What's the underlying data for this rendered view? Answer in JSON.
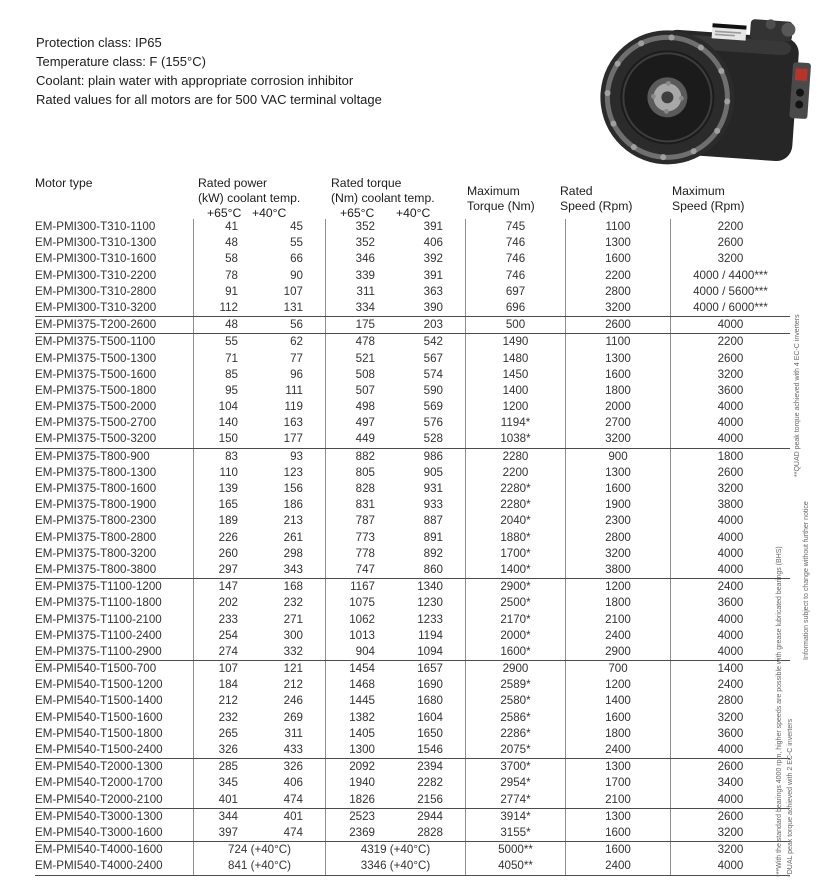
{
  "info": {
    "lines": [
      "Protection class: IP65",
      "Temperature class: F (155°C)",
      "Coolant: plain water with appropriate corrosion inhibitor",
      "Rated values for all motors are for 500 VAC terminal voltage"
    ]
  },
  "motor_image": {
    "icon": "electric-motor-photo"
  },
  "table": {
    "headers": {
      "motor_type": "Motor type",
      "power_title": "Rated power",
      "power_sub": "(kW) coolant temp.",
      "torque_title": "Rated torque",
      "torque_sub": "(Nm) coolant temp.",
      "temp65": "+65°C",
      "temp40": "+40°C",
      "max_torque_line1": "Maximum",
      "max_torque_line2": "Torque (Nm)",
      "rated_speed_line1": "Rated",
      "rated_speed_line2": "Speed (Rpm)",
      "max_speed_line1": "Maximum",
      "max_speed_line2": "Speed (Rpm)"
    },
    "columns": [
      "Motor type",
      "Rated power (kW) +65°C",
      "Rated power (kW) +40°C",
      "Rated torque (Nm) +65°C",
      "Rated torque (Nm) +40°C",
      "Maximum Torque (Nm)",
      "Rated Speed (Rpm)",
      "Maximum Speed (Rpm)"
    ],
    "groups": [
      {
        "rows": [
          [
            "EM-PMI300-T310-1100",
            "41",
            "45",
            "352",
            "391",
            "745",
            "1100",
            "2200"
          ],
          [
            "EM-PMI300-T310-1300",
            "48",
            "55",
            "352",
            "406",
            "746",
            "1300",
            "2600"
          ],
          [
            "EM-PMI300-T310-1600",
            "58",
            "66",
            "346",
            "392",
            "746",
            "1600",
            "3200"
          ],
          [
            "EM-PMI300-T310-2200",
            "78",
            "90",
            "339",
            "391",
            "746",
            "2200",
            "4000 / 4400***"
          ],
          [
            "EM-PMI300-T310-2800",
            "91",
            "107",
            "311",
            "363",
            "697",
            "2800",
            "4000 / 5600***"
          ],
          [
            "EM-PMI300-T310-3200",
            "112",
            "131",
            "334",
            "390",
            "696",
            "3200",
            "4000 / 6000***"
          ]
        ]
      },
      {
        "rows": [
          [
            "EM-PMI375-T200-2600",
            "48",
            "56",
            "175",
            "203",
            "500",
            "2600",
            "4000"
          ]
        ]
      },
      {
        "rows": [
          [
            "EM-PMI375-T500-1100",
            "55",
            "62",
            "478",
            "542",
            "1490",
            "1100",
            "2200"
          ],
          [
            "EM-PMI375-T500-1300",
            "71",
            "77",
            "521",
            "567",
            "1480",
            "1300",
            "2600"
          ],
          [
            "EM-PMI375-T500-1600",
            "85",
            "96",
            "508",
            "574",
            "1450",
            "1600",
            "3200"
          ],
          [
            "EM-PMI375-T500-1800",
            "95",
            "111",
            "507",
            "590",
            "1400",
            "1800",
            "3600"
          ],
          [
            "EM-PMI375-T500-2000",
            "104",
            "119",
            "498",
            "569",
            "1200",
            "2000",
            "4000"
          ],
          [
            "EM-PMI375-T500-2700",
            "140",
            "163",
            "497",
            "576",
            "1194*",
            "2700",
            "4000"
          ],
          [
            "EM-PMI375-T500-3200",
            "150",
            "177",
            "449",
            "528",
            "1038*",
            "3200",
            "4000"
          ]
        ]
      },
      {
        "rows": [
          [
            "EM-PMI375-T800-900",
            "83",
            "93",
            "882",
            "986",
            "2280",
            "900",
            "1800"
          ],
          [
            "EM-PMI375-T800-1300",
            "110",
            "123",
            "805",
            "905",
            "2200",
            "1300",
            "2600"
          ],
          [
            "EM-PMI375-T800-1600",
            "139",
            "156",
            "828",
            "931",
            "2280*",
            "1600",
            "3200"
          ],
          [
            "EM-PMI375-T800-1900",
            "165",
            "186",
            "831",
            "933",
            "2280*",
            "1900",
            "3800"
          ],
          [
            "EM-PMI375-T800-2300",
            "189",
            "213",
            "787",
            "887",
            "2040*",
            "2300",
            "4000"
          ],
          [
            "EM-PMI375-T800-2800",
            "226",
            "261",
            "773",
            "891",
            "1880*",
            "2800",
            "4000"
          ],
          [
            "EM-PMI375-T800-3200",
            "260",
            "298",
            "778",
            "892",
            "1700*",
            "3200",
            "4000"
          ],
          [
            "EM-PMI375-T800-3800",
            "297",
            "343",
            "747",
            "860",
            "1400*",
            "3800",
            "4000"
          ]
        ]
      },
      {
        "rows": [
          [
            "EM-PMI375-T1100-1200",
            "147",
            "168",
            "1167",
            "1340",
            "2900*",
            "1200",
            "2400"
          ],
          [
            "EM-PMI375-T1100-1800",
            "202",
            "232",
            "1075",
            "1230",
            "2500*",
            "1800",
            "3600"
          ],
          [
            "EM-PMI375-T1100-2100",
            "233",
            "271",
            "1062",
            "1233",
            "2170*",
            "2100",
            "4000"
          ],
          [
            "EM-PMI375-T1100-2400",
            "254",
            "300",
            "1013",
            "1194",
            "2000*",
            "2400",
            "4000"
          ],
          [
            "EM-PMI375-T1100-2900",
            "274",
            "332",
            "904",
            "1094",
            "1600*",
            "2900",
            "4000"
          ]
        ]
      },
      {
        "rows": [
          [
            "EM-PMI540-T1500-700",
            "107",
            "121",
            "1454",
            "1657",
            "2900",
            "700",
            "1400"
          ],
          [
            "EM-PMI540-T1500-1200",
            "184",
            "212",
            "1468",
            "1690",
            "2589*",
            "1200",
            "2400"
          ],
          [
            "EM-PMI540-T1500-1400",
            "212",
            "246",
            "1445",
            "1680",
            "2580*",
            "1400",
            "2800"
          ],
          [
            "EM-PMI540-T1500-1600",
            "232",
            "269",
            "1382",
            "1604",
            "2586*",
            "1600",
            "3200"
          ],
          [
            "EM-PMI540-T1500-1800",
            "265",
            "311",
            "1405",
            "1650",
            "2286*",
            "1800",
            "3600"
          ],
          [
            "EM-PMI540-T1500-2400",
            "326",
            "433",
            "1300",
            "1546",
            "2075*",
            "2400",
            "4000"
          ]
        ]
      },
      {
        "rows": [
          [
            "EM-PMI540-T2000-1300",
            "285",
            "326",
            "2092",
            "2394",
            "3700*",
            "1300",
            "2600"
          ],
          [
            "EM-PMI540-T2000-1700",
            "345",
            "406",
            "1940",
            "2282",
            "2954*",
            "1700",
            "3400"
          ],
          [
            "EM-PMI540-T2000-2100",
            "401",
            "474",
            "1826",
            "2156",
            "2774*",
            "2100",
            "4000"
          ]
        ]
      },
      {
        "rows": [
          [
            "EM-PMI540-T3000-1300",
            "344",
            "401",
            "2523",
            "2944",
            "3914*",
            "1300",
            "2600"
          ],
          [
            "EM-PMI540-T3000-1600",
            "397",
            "474",
            "2369",
            "2828",
            "3155*",
            "1600",
            "3200"
          ]
        ]
      },
      {
        "rows": [
          [
            "EM-PMI540-T4000-1600",
            "724 (+40°C)",
            null,
            "4319 (+40°C)",
            null,
            "5000**",
            "1600",
            "3200"
          ],
          [
            "EM-PMI540-T4000-2400",
            "841 (+40°C)",
            null,
            "3346 (+40°C)",
            null,
            "4050**",
            "2400",
            "4000"
          ]
        ]
      }
    ]
  },
  "footnotes": {
    "quad": "**QUAD peak torque achieved with 4 EC-C inverters",
    "info_change": "Information subject to change without further notice",
    "bearings": "***With the standard bearings 4000 rpm, higher speeds are possible with grease lubricated bearings (BHS)",
    "dual": "*DUAL peak torque achieved with 2 EC-C inverters"
  }
}
